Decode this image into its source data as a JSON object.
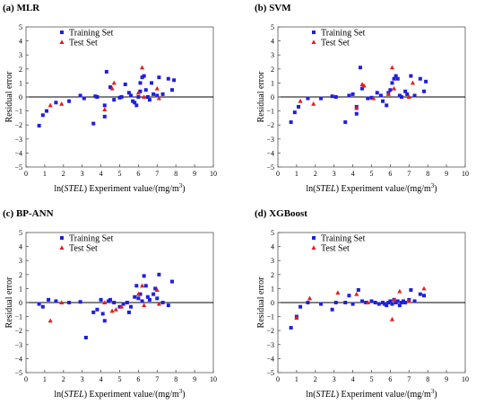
{
  "page": {
    "background": "#ffffff"
  },
  "chart_data": [
    {
      "type": "scatter",
      "title": "(a) MLR",
      "xlabel": "ln(STEL) Experiment value/(mg/m³)",
      "xlabel_parts": {
        "prefix": "ln(",
        "italic": "STEL",
        "suffix": ") Experiment value/(mg/m",
        "sup": "3",
        "close": ")"
      },
      "ylabel": "Residual error",
      "xlim": [
        0,
        10
      ],
      "ylim": [
        -5,
        5
      ],
      "xticks": [
        "0",
        "1",
        "2",
        "3",
        "4",
        "5",
        "6",
        "7",
        "8",
        "9",
        "10"
      ],
      "yticks": [
        "5",
        "4",
        "3",
        "2",
        "1",
        "0",
        "−1",
        "−2",
        "−3",
        "−4",
        "−5"
      ],
      "legend": "top-left",
      "series": [
        {
          "name": "Training Set",
          "marker": "square",
          "color": "#1f1fe0",
          "points": [
            [
              0.7,
              -2.05
            ],
            [
              0.9,
              -1.3
            ],
            [
              1.1,
              -1.0
            ],
            [
              1.6,
              -0.4
            ],
            [
              2.3,
              -0.3
            ],
            [
              2.9,
              0.1
            ],
            [
              3.1,
              -0.1
            ],
            [
              3.6,
              -1.9
            ],
            [
              3.7,
              0.05
            ],
            [
              3.8,
              0.0
            ],
            [
              4.2,
              -0.6
            ],
            [
              4.2,
              -1.4
            ],
            [
              4.3,
              1.8
            ],
            [
              4.5,
              0.7
            ],
            [
              4.7,
              -0.2
            ],
            [
              5.0,
              -0.05
            ],
            [
              5.1,
              0.0
            ],
            [
              5.3,
              0.9
            ],
            [
              5.5,
              0.3
            ],
            [
              5.6,
              0.1
            ],
            [
              5.7,
              -0.3
            ],
            [
              5.8,
              -0.4
            ],
            [
              5.9,
              -0.6
            ],
            [
              6.0,
              0.0
            ],
            [
              6.1,
              1.0
            ],
            [
              6.1,
              0.4
            ],
            [
              6.2,
              1.4
            ],
            [
              6.3,
              1.5
            ],
            [
              6.4,
              0.5
            ],
            [
              6.5,
              0.0
            ],
            [
              6.6,
              -0.2
            ],
            [
              6.7,
              1.0
            ],
            [
              6.8,
              0.2
            ],
            [
              7.0,
              0.1
            ],
            [
              7.1,
              1.4
            ],
            [
              7.3,
              0.2
            ],
            [
              7.6,
              1.3
            ],
            [
              7.8,
              0.5
            ],
            [
              7.9,
              1.2
            ]
          ]
        },
        {
          "name": "Test Set",
          "marker": "triangle",
          "color": "#e02020",
          "points": [
            [
              1.3,
              -0.6
            ],
            [
              1.9,
              -0.5
            ],
            [
              4.2,
              -0.9
            ],
            [
              4.6,
              0.6
            ],
            [
              4.7,
              1.0
            ],
            [
              6.0,
              0.3
            ],
            [
              6.2,
              2.1
            ],
            [
              6.3,
              0.0
            ],
            [
              7.0,
              0.6
            ],
            [
              7.1,
              -0.1
            ]
          ]
        }
      ]
    },
    {
      "type": "scatter",
      "title": "(b) SVM",
      "xlabel": "ln(STEL) Experiment value/(mg/m³)",
      "xlabel_parts": {
        "prefix": "ln(",
        "italic": "STEL",
        "suffix": ") Experiment value/(mg/m",
        "sup": "3",
        "close": ")"
      },
      "ylabel": "Residual error",
      "xlim": [
        0,
        10
      ],
      "ylim": [
        -5,
        5
      ],
      "xticks": [
        "0",
        "1",
        "2",
        "3",
        "4",
        "5",
        "6",
        "7",
        "8",
        "9",
        "10"
      ],
      "yticks": [
        "5",
        "4",
        "3",
        "2",
        "1",
        "0",
        "−1",
        "−2",
        "−3",
        "−4",
        "−5"
      ],
      "legend": "top-left",
      "series": [
        {
          "name": "Training Set",
          "marker": "square",
          "color": "#1f1fe0",
          "points": [
            [
              0.7,
              -1.8
            ],
            [
              0.9,
              -1.1
            ],
            [
              1.1,
              -0.7
            ],
            [
              1.6,
              -0.1
            ],
            [
              2.3,
              -0.1
            ],
            [
              2.9,
              0.05
            ],
            [
              3.1,
              0.0
            ],
            [
              3.6,
              -1.8
            ],
            [
              3.8,
              0.1
            ],
            [
              4.0,
              0.2
            ],
            [
              4.2,
              -1.2
            ],
            [
              4.2,
              -0.7
            ],
            [
              4.4,
              2.1
            ],
            [
              4.5,
              0.6
            ],
            [
              4.8,
              -0.1
            ],
            [
              5.0,
              -0.05
            ],
            [
              5.3,
              0.3
            ],
            [
              5.5,
              0.1
            ],
            [
              5.6,
              -0.3
            ],
            [
              5.8,
              -0.6
            ],
            [
              5.9,
              0.3
            ],
            [
              6.0,
              0.5
            ],
            [
              6.1,
              1.0
            ],
            [
              6.2,
              1.3
            ],
            [
              6.3,
              1.5
            ],
            [
              6.4,
              1.3
            ],
            [
              6.5,
              0.1
            ],
            [
              6.6,
              0.0
            ],
            [
              6.8,
              0.4
            ],
            [
              6.9,
              0.2
            ],
            [
              7.1,
              1.5
            ],
            [
              7.3,
              0.1
            ],
            [
              7.6,
              1.3
            ],
            [
              7.8,
              0.4
            ],
            [
              7.9,
              1.1
            ]
          ]
        },
        {
          "name": "Test Set",
          "marker": "triangle",
          "color": "#e02020",
          "points": [
            [
              1.2,
              -0.3
            ],
            [
              1.9,
              -0.5
            ],
            [
              4.2,
              -0.8
            ],
            [
              4.5,
              0.9
            ],
            [
              4.6,
              0.8
            ],
            [
              5.1,
              -0.1
            ],
            [
              5.9,
              0.2
            ],
            [
              6.1,
              2.1
            ],
            [
              6.2,
              0.6
            ],
            [
              7.0,
              0.0
            ],
            [
              7.2,
              1.0
            ]
          ]
        }
      ]
    },
    {
      "type": "scatter",
      "title": "(c) BP-ANN",
      "xlabel": "ln(STEL) Experiment value/(mg/m³)",
      "xlabel_parts": {
        "prefix": "ln(",
        "italic": "STEL",
        "suffix": ") Experiment value/(mg/m",
        "sup": "3",
        "close": ")"
      },
      "ylabel": "Residual error",
      "xlim": [
        0,
        10
      ],
      "ylim": [
        -5,
        5
      ],
      "xticks": [
        "0",
        "1",
        "2",
        "3",
        "4",
        "5",
        "6",
        "7",
        "8",
        "9",
        "10"
      ],
      "yticks": [
        "5",
        "4",
        "3",
        "2",
        "1",
        "0",
        "−1",
        "−2",
        "−3",
        "−4",
        "−5"
      ],
      "legend": "top-left",
      "series": [
        {
          "name": "Training Set",
          "marker": "square",
          "color": "#1f1fe0",
          "points": [
            [
              0.7,
              -0.1
            ],
            [
              0.9,
              -0.3
            ],
            [
              1.2,
              0.2
            ],
            [
              1.6,
              0.1
            ],
            [
              2.3,
              0.0
            ],
            [
              2.9,
              0.05
            ],
            [
              3.2,
              -2.5
            ],
            [
              3.6,
              -0.7
            ],
            [
              3.8,
              -0.5
            ],
            [
              4.0,
              0.2
            ],
            [
              4.1,
              -0.8
            ],
            [
              4.2,
              -1.3
            ],
            [
              4.4,
              0.1
            ],
            [
              4.5,
              0.2
            ],
            [
              4.7,
              0.0
            ],
            [
              5.0,
              -0.3
            ],
            [
              5.2,
              -0.1
            ],
            [
              5.4,
              0.0
            ],
            [
              5.5,
              -0.7
            ],
            [
              5.6,
              -0.3
            ],
            [
              5.8,
              0.4
            ],
            [
              5.9,
              1.2
            ],
            [
              6.0,
              0.3
            ],
            [
              6.1,
              0.6
            ],
            [
              6.2,
              0.1
            ],
            [
              6.3,
              1.9
            ],
            [
              6.4,
              1.2
            ],
            [
              6.5,
              0.4
            ],
            [
              6.6,
              0.2
            ],
            [
              6.8,
              0.6
            ],
            [
              6.9,
              1.0
            ],
            [
              7.0,
              0.3
            ],
            [
              7.1,
              2.0
            ],
            [
              7.3,
              0.0
            ],
            [
              7.6,
              -0.2
            ],
            [
              7.8,
              1.5
            ]
          ]
        },
        {
          "name": "Test Set",
          "marker": "triangle",
          "color": "#e02020",
          "points": [
            [
              1.3,
              -1.3
            ],
            [
              1.9,
              0.0
            ],
            [
              4.2,
              0.0
            ],
            [
              4.6,
              -0.6
            ],
            [
              4.8,
              -0.5
            ],
            [
              5.1,
              -0.3
            ],
            [
              6.0,
              0.6
            ],
            [
              6.2,
              1.2
            ],
            [
              6.3,
              -0.2
            ],
            [
              7.0,
              0.9
            ],
            [
              7.1,
              -0.1
            ]
          ]
        }
      ]
    },
    {
      "type": "scatter",
      "title": "(d) XGBoost",
      "xlabel": "ln(STEL) Experiment value/(mg/m³)",
      "xlabel_parts": {
        "prefix": "ln(",
        "italic": "STEL",
        "suffix": ") Experiment value/(mg/m",
        "sup": "3",
        "close": ")"
      },
      "ylabel": "Residual error",
      "xlim": [
        0,
        10
      ],
      "ylim": [
        -5,
        5
      ],
      "xticks": [
        "0",
        "1",
        "2",
        "3",
        "4",
        "5",
        "6",
        "7",
        "8",
        "9",
        "10"
      ],
      "yticks": [
        "5",
        "4",
        "3",
        "2",
        "1",
        "0",
        "−1",
        "−2",
        "−3",
        "−4",
        "−5"
      ],
      "legend": "top-left",
      "series": [
        {
          "name": "Training Set",
          "marker": "square",
          "color": "#1f1fe0",
          "points": [
            [
              0.7,
              -1.8
            ],
            [
              1.0,
              -1.0
            ],
            [
              1.2,
              -0.3
            ],
            [
              1.6,
              0.0
            ],
            [
              2.3,
              -0.1
            ],
            [
              2.9,
              -0.5
            ],
            [
              3.1,
              0.0
            ],
            [
              3.6,
              0.0
            ],
            [
              3.8,
              0.5
            ],
            [
              4.0,
              -0.1
            ],
            [
              4.3,
              0.9
            ],
            [
              4.5,
              0.1
            ],
            [
              4.7,
              0.0
            ],
            [
              5.0,
              0.1
            ],
            [
              5.2,
              0.0
            ],
            [
              5.4,
              -0.1
            ],
            [
              5.6,
              0.0
            ],
            [
              5.7,
              -0.1
            ],
            [
              5.8,
              -0.2
            ],
            [
              5.9,
              0.0
            ],
            [
              6.0,
              0.1
            ],
            [
              6.1,
              -0.1
            ],
            [
              6.2,
              0.2
            ],
            [
              6.3,
              0.0
            ],
            [
              6.4,
              0.1
            ],
            [
              6.5,
              -0.2
            ],
            [
              6.6,
              0.0
            ],
            [
              6.7,
              0.1
            ],
            [
              6.8,
              0.0
            ],
            [
              7.0,
              0.2
            ],
            [
              7.1,
              0.9
            ],
            [
              7.3,
              0.1
            ],
            [
              7.6,
              0.6
            ],
            [
              7.8,
              0.5
            ]
          ]
        },
        {
          "name": "Test Set",
          "marker": "triangle",
          "color": "#e02020",
          "points": [
            [
              1.0,
              -1.1
            ],
            [
              1.7,
              0.3
            ],
            [
              3.2,
              0.7
            ],
            [
              4.2,
              0.6
            ],
            [
              4.8,
              0.0
            ],
            [
              6.1,
              -1.2
            ],
            [
              6.2,
              0.2
            ],
            [
              6.5,
              0.8
            ],
            [
              7.0,
              0.1
            ],
            [
              7.8,
              1.0
            ]
          ]
        }
      ]
    }
  ]
}
